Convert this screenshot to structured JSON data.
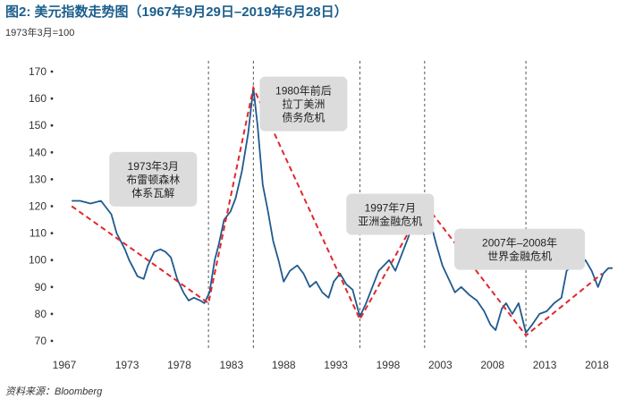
{
  "title": "图2: 美元指数走势图（1967年9月29日–2019年6月28日）",
  "subtitle": "1973年3月=100",
  "source": "资料来源：Bloomberg",
  "colors": {
    "series": "#1f5a8f",
    "trend": "#e0282e",
    "box": "#dcdcdc",
    "title": "#1b5e8c"
  },
  "chart_data": {
    "type": "line",
    "title": "图2: 美元指数走势图（1967年9月29日–2019年6月28日）",
    "ylabel": "1973年3月=100",
    "xlim": [
      1967,
      2019.5
    ],
    "ylim": [
      70,
      170
    ],
    "y_ticks": [
      70,
      80,
      90,
      100,
      110,
      120,
      130,
      140,
      150,
      160,
      170
    ],
    "x_ticks": [
      "1967",
      "1973",
      "1978",
      "1983",
      "1988",
      "1993",
      "1998",
      "2003",
      "2008",
      "2013",
      "2018"
    ],
    "grid": false,
    "cycle_lines": [
      1980.8,
      1985.1,
      1995.3,
      2001.5,
      2011.2
    ],
    "series": [
      {
        "x": [
          1967.7,
          1968.5,
          1969.5,
          1970.5,
          1971.5,
          1972.0,
          1972.8,
          1973.2,
          1973.6,
          1974.0,
          1974.6,
          1975.0,
          1975.6,
          1976.2,
          1976.7,
          1977.2,
          1977.8,
          1978.4,
          1978.9,
          1979.4,
          1980.0,
          1980.4,
          1980.9,
          1981.4,
          1981.8,
          1982.3,
          1982.9,
          1983.4,
          1984.0,
          1984.6,
          1985.1,
          1985.5,
          1986.0,
          1986.5,
          1987.0,
          1987.5,
          1988.0,
          1988.6,
          1989.3,
          1989.9,
          1990.5,
          1991.1,
          1991.7,
          1992.3,
          1992.8,
          1993.4,
          1994.0,
          1994.6,
          1995.3,
          1995.9,
          1996.5,
          1997.1,
          1997.6,
          1998.1,
          1998.7,
          1999.3,
          1999.9,
          2000.5,
          2001.0,
          2001.5,
          2002.0,
          2002.6,
          2003.2,
          2003.8,
          2004.4,
          2005.0,
          2005.8,
          2006.5,
          2007.2,
          2007.8,
          2008.3,
          2008.9,
          2009.3,
          2009.9,
          2010.5,
          2011.2,
          2011.8,
          2012.5,
          2013.2,
          2013.9,
          2014.6,
          2015.1,
          2015.7,
          2016.3,
          2016.9,
          2017.5,
          2018.1,
          2018.6,
          2019.1,
          2019.5
        ],
        "values": [
          122,
          122,
          121,
          122,
          117,
          110,
          104,
          100,
          97,
          94,
          93,
          98,
          103,
          104,
          103,
          101,
          93,
          88,
          85,
          86,
          85,
          84,
          88,
          100,
          106,
          115,
          118,
          123,
          133,
          147,
          164,
          150,
          128,
          118,
          107,
          100,
          92,
          96,
          98,
          95,
          90,
          92,
          88,
          86,
          92,
          95,
          91,
          89,
          79,
          84,
          90,
          96,
          98,
          100,
          96,
          102,
          108,
          115,
          118,
          122,
          115,
          106,
          98,
          93,
          88,
          90,
          87,
          85,
          81,
          76,
          74,
          82,
          84,
          80,
          84,
          73,
          76,
          80,
          81,
          84,
          86,
          96,
          98,
          97,
          100,
          96,
          90,
          95,
          97,
          97
        ]
      }
    ],
    "trend_points": {
      "x": [
        1967.7,
        1980.8,
        1985.1,
        1995.3,
        2001.5,
        2011.2,
        2018.5
      ],
      "values": [
        120,
        84,
        164,
        78,
        121,
        72,
        95
      ]
    },
    "annotations": [
      {
        "text": [
          "1973年3月",
          "布雷顿森林",
          "体系瓦解"
        ],
        "x": 1975.5,
        "y": 130
      },
      {
        "text": [
          "1980年前后",
          "拉丁美洲",
          "债务危机"
        ],
        "x": 1989.9,
        "y": 158
      },
      {
        "text": [
          "1997年7月",
          "亚洲金融危机"
        ],
        "x": 1998.2,
        "y": 117
      },
      {
        "text": [
          "2007年–2008年",
          "世界金融危机"
        ],
        "x": 2010.6,
        "y": 104
      }
    ]
  }
}
